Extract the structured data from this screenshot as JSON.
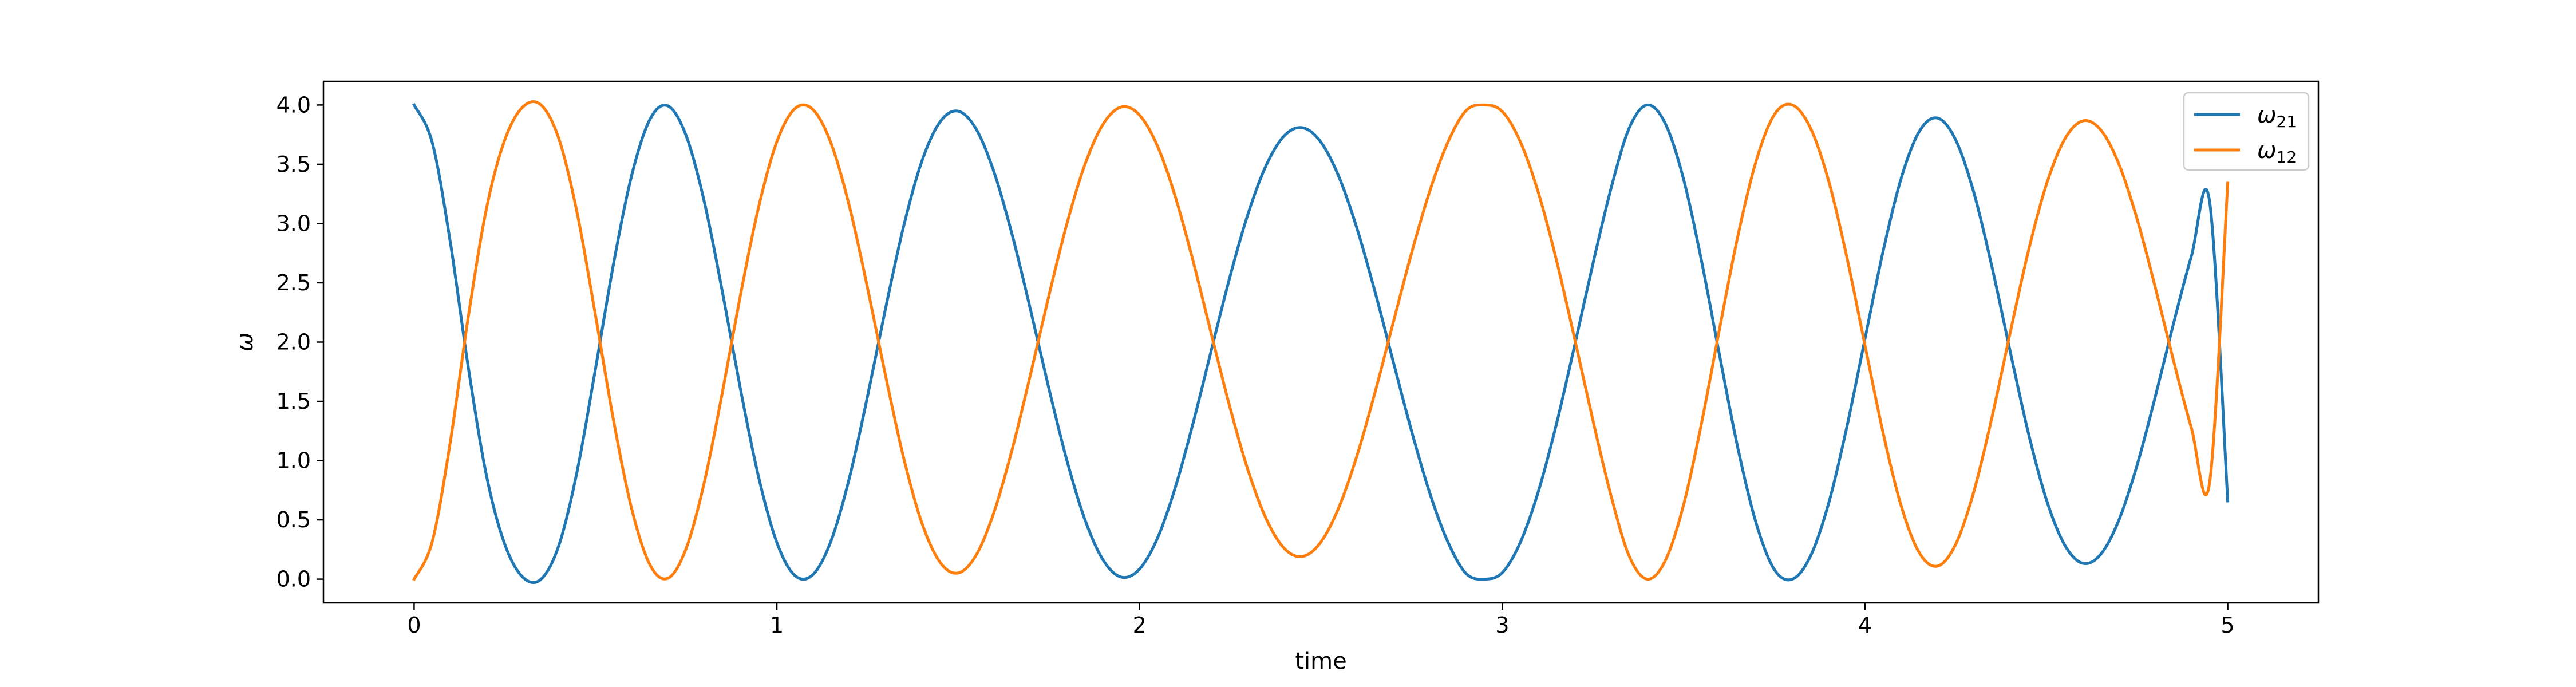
{
  "chart_data": {
    "type": "line",
    "title": "",
    "xlabel": "time",
    "ylabel": "ω",
    "xlim": [
      -0.25,
      5.25
    ],
    "ylim": [
      -0.2,
      4.2
    ],
    "xticks": [
      0,
      1,
      2,
      3,
      4,
      5
    ],
    "xtick_labels": [
      "0",
      "1",
      "2",
      "3",
      "4",
      "5"
    ],
    "yticks": [
      0.0,
      0.5,
      1.0,
      1.5,
      2.0,
      2.5,
      3.0,
      3.5,
      4.0
    ],
    "ytick_labels": [
      "0.0",
      "0.5",
      "1.0",
      "1.5",
      "2.0",
      "2.5",
      "3.0",
      "3.5",
      "4.0"
    ],
    "grid": false,
    "legend_position": "top-right",
    "x": [
      0,
      0.05,
      0.1,
      0.15,
      0.2,
      0.25,
      0.3,
      0.35,
      0.4,
      0.45,
      0.5,
      0.55,
      0.6,
      0.65,
      0.7,
      0.75,
      0.8,
      0.85,
      0.9,
      0.95,
      1.0,
      1.05,
      1.1,
      1.15,
      1.2,
      1.25,
      1.3,
      1.35,
      1.4,
      1.45,
      1.5,
      1.55,
      1.6,
      1.65,
      1.7,
      1.75,
      1.8,
      1.85,
      1.9,
      1.95,
      2.0,
      2.05,
      2.1,
      2.15,
      2.2,
      2.25,
      2.3,
      2.35,
      2.4,
      2.45,
      2.5,
      2.55,
      2.6,
      2.65,
      2.7,
      2.75,
      2.8,
      2.85,
      2.9,
      2.95,
      3.0,
      3.05,
      3.1,
      3.15,
      3.2,
      3.25,
      3.3,
      3.35,
      3.4,
      3.45,
      3.5,
      3.55,
      3.6,
      3.65,
      3.7,
      3.75,
      3.8,
      3.85,
      3.9,
      3.95,
      4.0,
      4.05,
      4.1,
      4.15,
      4.2,
      4.25,
      4.3,
      4.35,
      4.4,
      4.45,
      4.5,
      4.55,
      4.6,
      4.65,
      4.7,
      4.75,
      4.8,
      4.85,
      4.9,
      4.95,
      5.0
    ],
    "series": [
      {
        "name": "ω21",
        "color": "#1f77b4",
        "values": [
          4.0,
          3.684,
          2.838,
          1.774,
          0.866,
          0.294,
          0.016,
          0.0,
          0.293,
          0.919,
          1.774,
          2.664,
          3.408,
          3.878,
          3.992,
          3.741,
          3.184,
          2.423,
          1.598,
          0.858,
          0.309,
          0.03,
          0.04,
          0.327,
          0.854,
          1.542,
          2.288,
          2.982,
          3.527,
          3.858,
          3.948,
          3.795,
          3.423,
          2.891,
          2.264,
          1.609,
          0.998,
          0.497,
          0.159,
          0.017,
          0.085,
          0.35,
          0.788,
          1.345,
          1.958,
          2.56,
          3.091,
          3.497,
          3.744,
          3.808,
          3.687,
          3.391,
          2.953,
          2.415,
          1.828,
          1.248,
          0.727,
          0.314,
          0.048,
          0.0,
          0.055,
          0.312,
          0.745,
          1.317,
          1.979,
          2.662,
          3.298,
          3.806,
          4.0,
          3.84,
          3.371,
          2.674,
          1.873,
          1.098,
          0.471,
          0.081,
          0.0,
          0.196,
          0.643,
          1.285,
          2.028,
          2.767,
          3.384,
          3.779,
          3.89,
          3.706,
          3.262,
          2.635,
          1.925,
          1.238,
          0.672,
          0.291,
          0.134,
          0.21,
          0.498,
          0.96,
          1.535,
          2.15,
          2.726,
          3.188,
          0.66
        ]
      },
      {
        "name": "ω12",
        "color": "#ff7f0e",
        "values": [
          0.0,
          0.316,
          1.162,
          2.226,
          3.134,
          3.706,
          3.984,
          4.0,
          3.707,
          3.081,
          2.226,
          1.336,
          0.592,
          0.122,
          0.008,
          0.259,
          0.816,
          1.577,
          2.402,
          3.142,
          3.691,
          3.97,
          3.96,
          3.673,
          3.146,
          2.458,
          1.712,
          1.018,
          0.473,
          0.142,
          0.052,
          0.205,
          0.577,
          1.109,
          1.736,
          2.391,
          3.002,
          3.503,
          3.841,
          3.983,
          3.915,
          3.65,
          3.212,
          2.655,
          2.042,
          1.44,
          0.909,
          0.503,
          0.256,
          0.192,
          0.313,
          0.609,
          1.047,
          1.585,
          2.172,
          2.752,
          3.273,
          3.686,
          3.952,
          4.0,
          3.945,
          3.688,
          3.255,
          2.683,
          2.021,
          1.338,
          0.702,
          0.194,
          0.0,
          0.16,
          0.629,
          1.326,
          2.127,
          2.902,
          3.529,
          3.919,
          4.0,
          3.804,
          3.357,
          2.715,
          1.972,
          1.233,
          0.616,
          0.221,
          0.11,
          0.294,
          0.738,
          1.365,
          2.075,
          2.762,
          3.328,
          3.709,
          3.866,
          3.79,
          3.502,
          3.04,
          2.465,
          1.85,
          1.274,
          0.812,
          3.34
        ]
      }
    ]
  }
}
